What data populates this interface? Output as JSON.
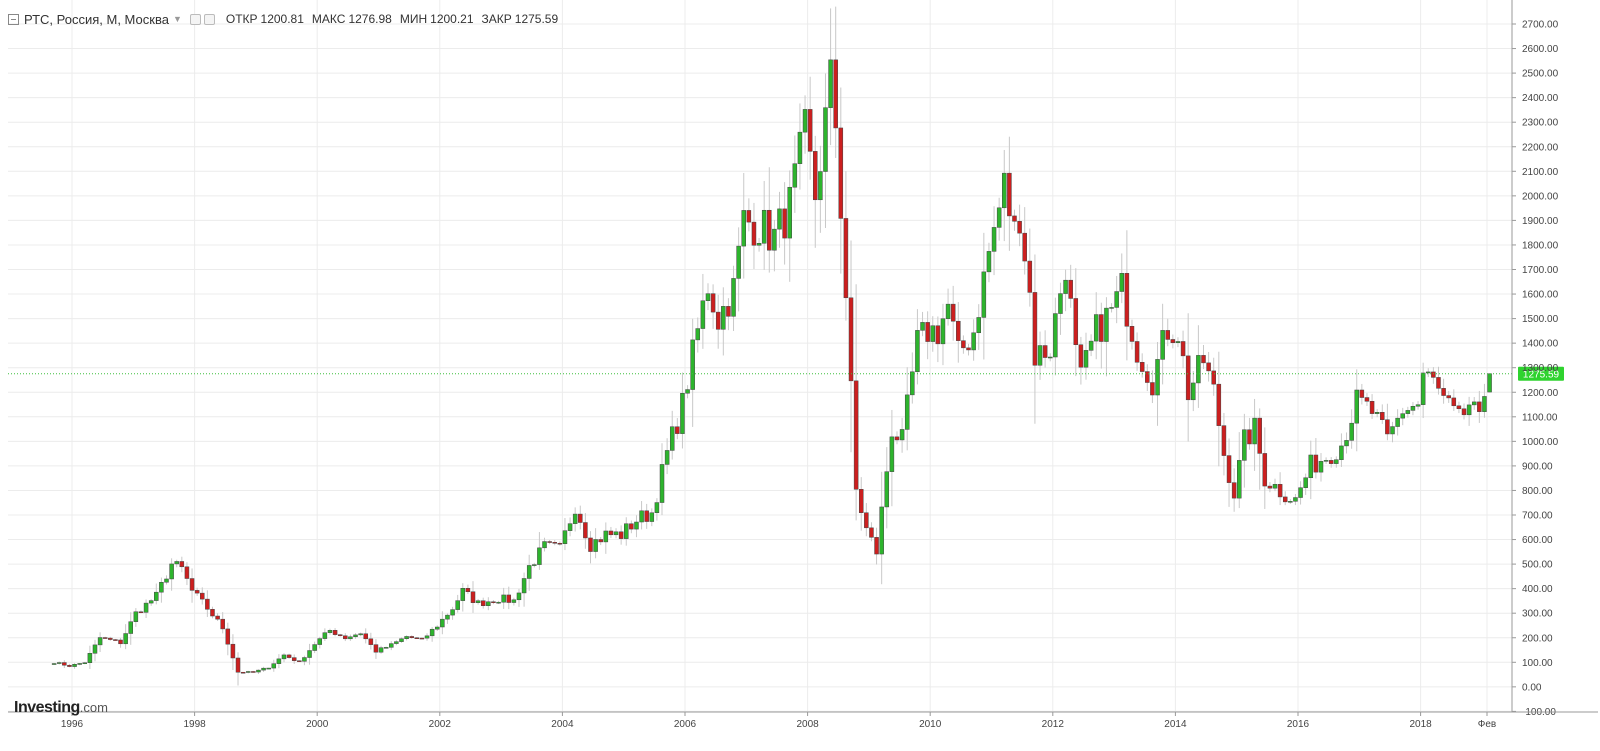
{
  "header": {
    "title": "РТС, Россия, М, Москва",
    "open_label": "ОТКР",
    "open": "1200.81",
    "high_label": "МАКС",
    "high": "1276.98",
    "low_label": "МИН",
    "low": "1200.21",
    "close_label": "ЗАКР",
    "close": "1275.59"
  },
  "logo": {
    "main": "Investing",
    "suffix": ".com"
  },
  "colors": {
    "up": "#2db42d",
    "down": "#cc1f1f",
    "wick": "#c8c8c8",
    "last_line": "#3fbf3f",
    "grid": "#ececec"
  },
  "chart_data": {
    "type": "candlestick",
    "interval": "monthly",
    "ylim": [
      -100,
      2750
    ],
    "y_ticks": [
      -100,
      0,
      100,
      200,
      300,
      400,
      500,
      600,
      700,
      800,
      900,
      1000,
      1100,
      1200,
      1300,
      1400,
      1500,
      1600,
      1700,
      1800,
      1900,
      2000,
      2100,
      2200,
      2300,
      2400,
      2500,
      2600,
      2700
    ],
    "x_ticks": [
      "1996",
      "1998",
      "2000",
      "2002",
      "2004",
      "2006",
      "2008",
      "2010",
      "2012",
      "2014",
      "2016",
      "2018",
      "Фев"
    ],
    "last_price": 1275.59,
    "series_anchors": [
      [
        "1995-09",
        100
      ],
      [
        "1995-12",
        85
      ],
      [
        "1996-03",
        100
      ],
      [
        "1996-06",
        200
      ],
      [
        "1996-10",
        180
      ],
      [
        "1997-01",
        300
      ],
      [
        "1997-05",
        370
      ],
      [
        "1997-08",
        500
      ],
      [
        "1997-10",
        480
      ],
      [
        "1997-12",
        390
      ],
      [
        "1998-03",
        320
      ],
      [
        "1998-06",
        240
      ],
      [
        "1998-09",
        60
      ],
      [
        "1998-12",
        60
      ],
      [
        "1999-03",
        80
      ],
      [
        "1999-06",
        130
      ],
      [
        "1999-09",
        100
      ],
      [
        "1999-12",
        175
      ],
      [
        "2000-03",
        230
      ],
      [
        "2000-06",
        200
      ],
      [
        "2000-09",
        220
      ],
      [
        "2000-12",
        145
      ],
      [
        "2001-03",
        170
      ],
      [
        "2001-06",
        205
      ],
      [
        "2001-09",
        190
      ],
      [
        "2001-12",
        250
      ],
      [
        "2002-03",
        320
      ],
      [
        "2002-05",
        390
      ],
      [
        "2002-08",
        340
      ],
      [
        "2002-12",
        360
      ],
      [
        "2003-03",
        350
      ],
      [
        "2003-06",
        490
      ],
      [
        "2003-09",
        570
      ],
      [
        "2003-12",
        560
      ],
      [
        "2004-03",
        740
      ],
      [
        "2004-06",
        580
      ],
      [
        "2004-09",
        620
      ],
      [
        "2004-12",
        620
      ],
      [
        "2005-03",
        680
      ],
      [
        "2005-06",
        710
      ],
      [
        "2005-09",
        950
      ],
      [
        "2005-12",
        1150
      ],
      [
        "2006-03",
        1450
      ],
      [
        "2006-05",
        1640
      ],
      [
        "2006-07",
        1500
      ],
      [
        "2006-10",
        1620
      ],
      [
        "2006-12",
        1900
      ],
      [
        "2007-03",
        1880
      ],
      [
        "2007-06",
        1830
      ],
      [
        "2007-09",
        1960
      ],
      [
        "2007-12",
        2250
      ],
      [
        "2008-02",
        2000
      ],
      [
        "2008-05",
        2460
      ],
      [
        "2008-06",
        2300
      ],
      [
        "2008-07",
        1960
      ],
      [
        "2008-08",
        1600
      ],
      [
        "2008-09",
        1200
      ],
      [
        "2008-10",
        800
      ],
      [
        "2008-12",
        640
      ],
      [
        "2009-02",
        550
      ],
      [
        "2009-05",
        1050
      ],
      [
        "2009-07",
        1000
      ],
      [
        "2009-10",
        1400
      ],
      [
        "2009-12",
        1450
      ],
      [
        "2010-02",
        1450
      ],
      [
        "2010-04",
        1550
      ],
      [
        "2010-06",
        1350
      ],
      [
        "2010-09",
        1450
      ],
      [
        "2010-12",
        1770
      ],
      [
        "2011-03",
        2040
      ],
      [
        "2011-05",
        1850
      ],
      [
        "2011-06",
        1940
      ],
      [
        "2011-08",
        1600
      ],
      [
        "2011-09",
        1350
      ],
      [
        "2011-12",
        1380
      ],
      [
        "2012-03",
        1730
      ],
      [
        "2012-05",
        1350
      ],
      [
        "2012-06",
        1250
      ],
      [
        "2012-09",
        1450
      ],
      [
        "2012-12",
        1530
      ],
      [
        "2013-02",
        1620
      ],
      [
        "2013-05",
        1380
      ],
      [
        "2013-08",
        1250
      ],
      [
        "2013-11",
        1460
      ],
      [
        "2014-01",
        1450
      ],
      [
        "2014-03",
        1200
      ],
      [
        "2014-06",
        1330
      ],
      [
        "2014-08",
        1200
      ],
      [
        "2014-10",
        950
      ],
      [
        "2014-12",
        790
      ],
      [
        "2015-02",
        1000
      ],
      [
        "2015-04",
        1050
      ],
      [
        "2015-06",
        850
      ],
      [
        "2015-09",
        800
      ],
      [
        "2015-12",
        760
      ],
      [
        "2016-03",
        900
      ],
      [
        "2016-06",
        940
      ],
      [
        "2016-09",
        990
      ],
      [
        "2016-12",
        1160
      ],
      [
        "2017-03",
        1120
      ],
      [
        "2017-06",
        1000
      ],
      [
        "2017-09",
        1130
      ],
      [
        "2017-12",
        1150
      ],
      [
        "2018-01",
        1270
      ],
      [
        "2018-03",
        1240
      ],
      [
        "2018-05",
        1160
      ],
      [
        "2018-08",
        1080
      ],
      [
        "2018-10",
        1150
      ],
      [
        "2018-12",
        1070
      ],
      [
        "2019-01",
        1200
      ],
      [
        "2019-02",
        1275.59
      ]
    ]
  }
}
